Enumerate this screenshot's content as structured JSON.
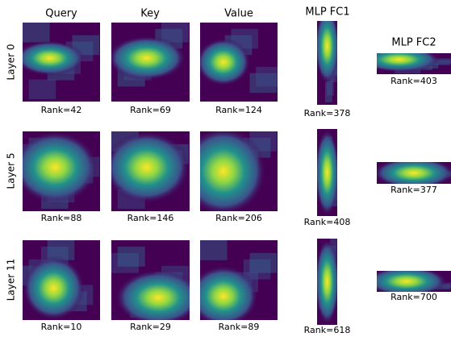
{
  "columns": [
    "Query",
    "Key",
    "Value",
    "MLP FC1",
    "MLP FC2"
  ],
  "rows": [
    {
      "label": "Layer 0",
      "ranks": [
        "Rank=42",
        "Rank=69",
        "Rank=124",
        "Rank=378",
        "Rank=403"
      ]
    },
    {
      "label": "Layer 5",
      "ranks": [
        "Rank=88",
        "Rank=146",
        "Rank=206",
        "Rank=408",
        "Rank=377"
      ]
    },
    {
      "label": "Layer 11",
      "ranks": [
        "Rank=10",
        "Rank=29",
        "Rank=89",
        "Rank=618",
        "Rank=700"
      ]
    }
  ]
}
